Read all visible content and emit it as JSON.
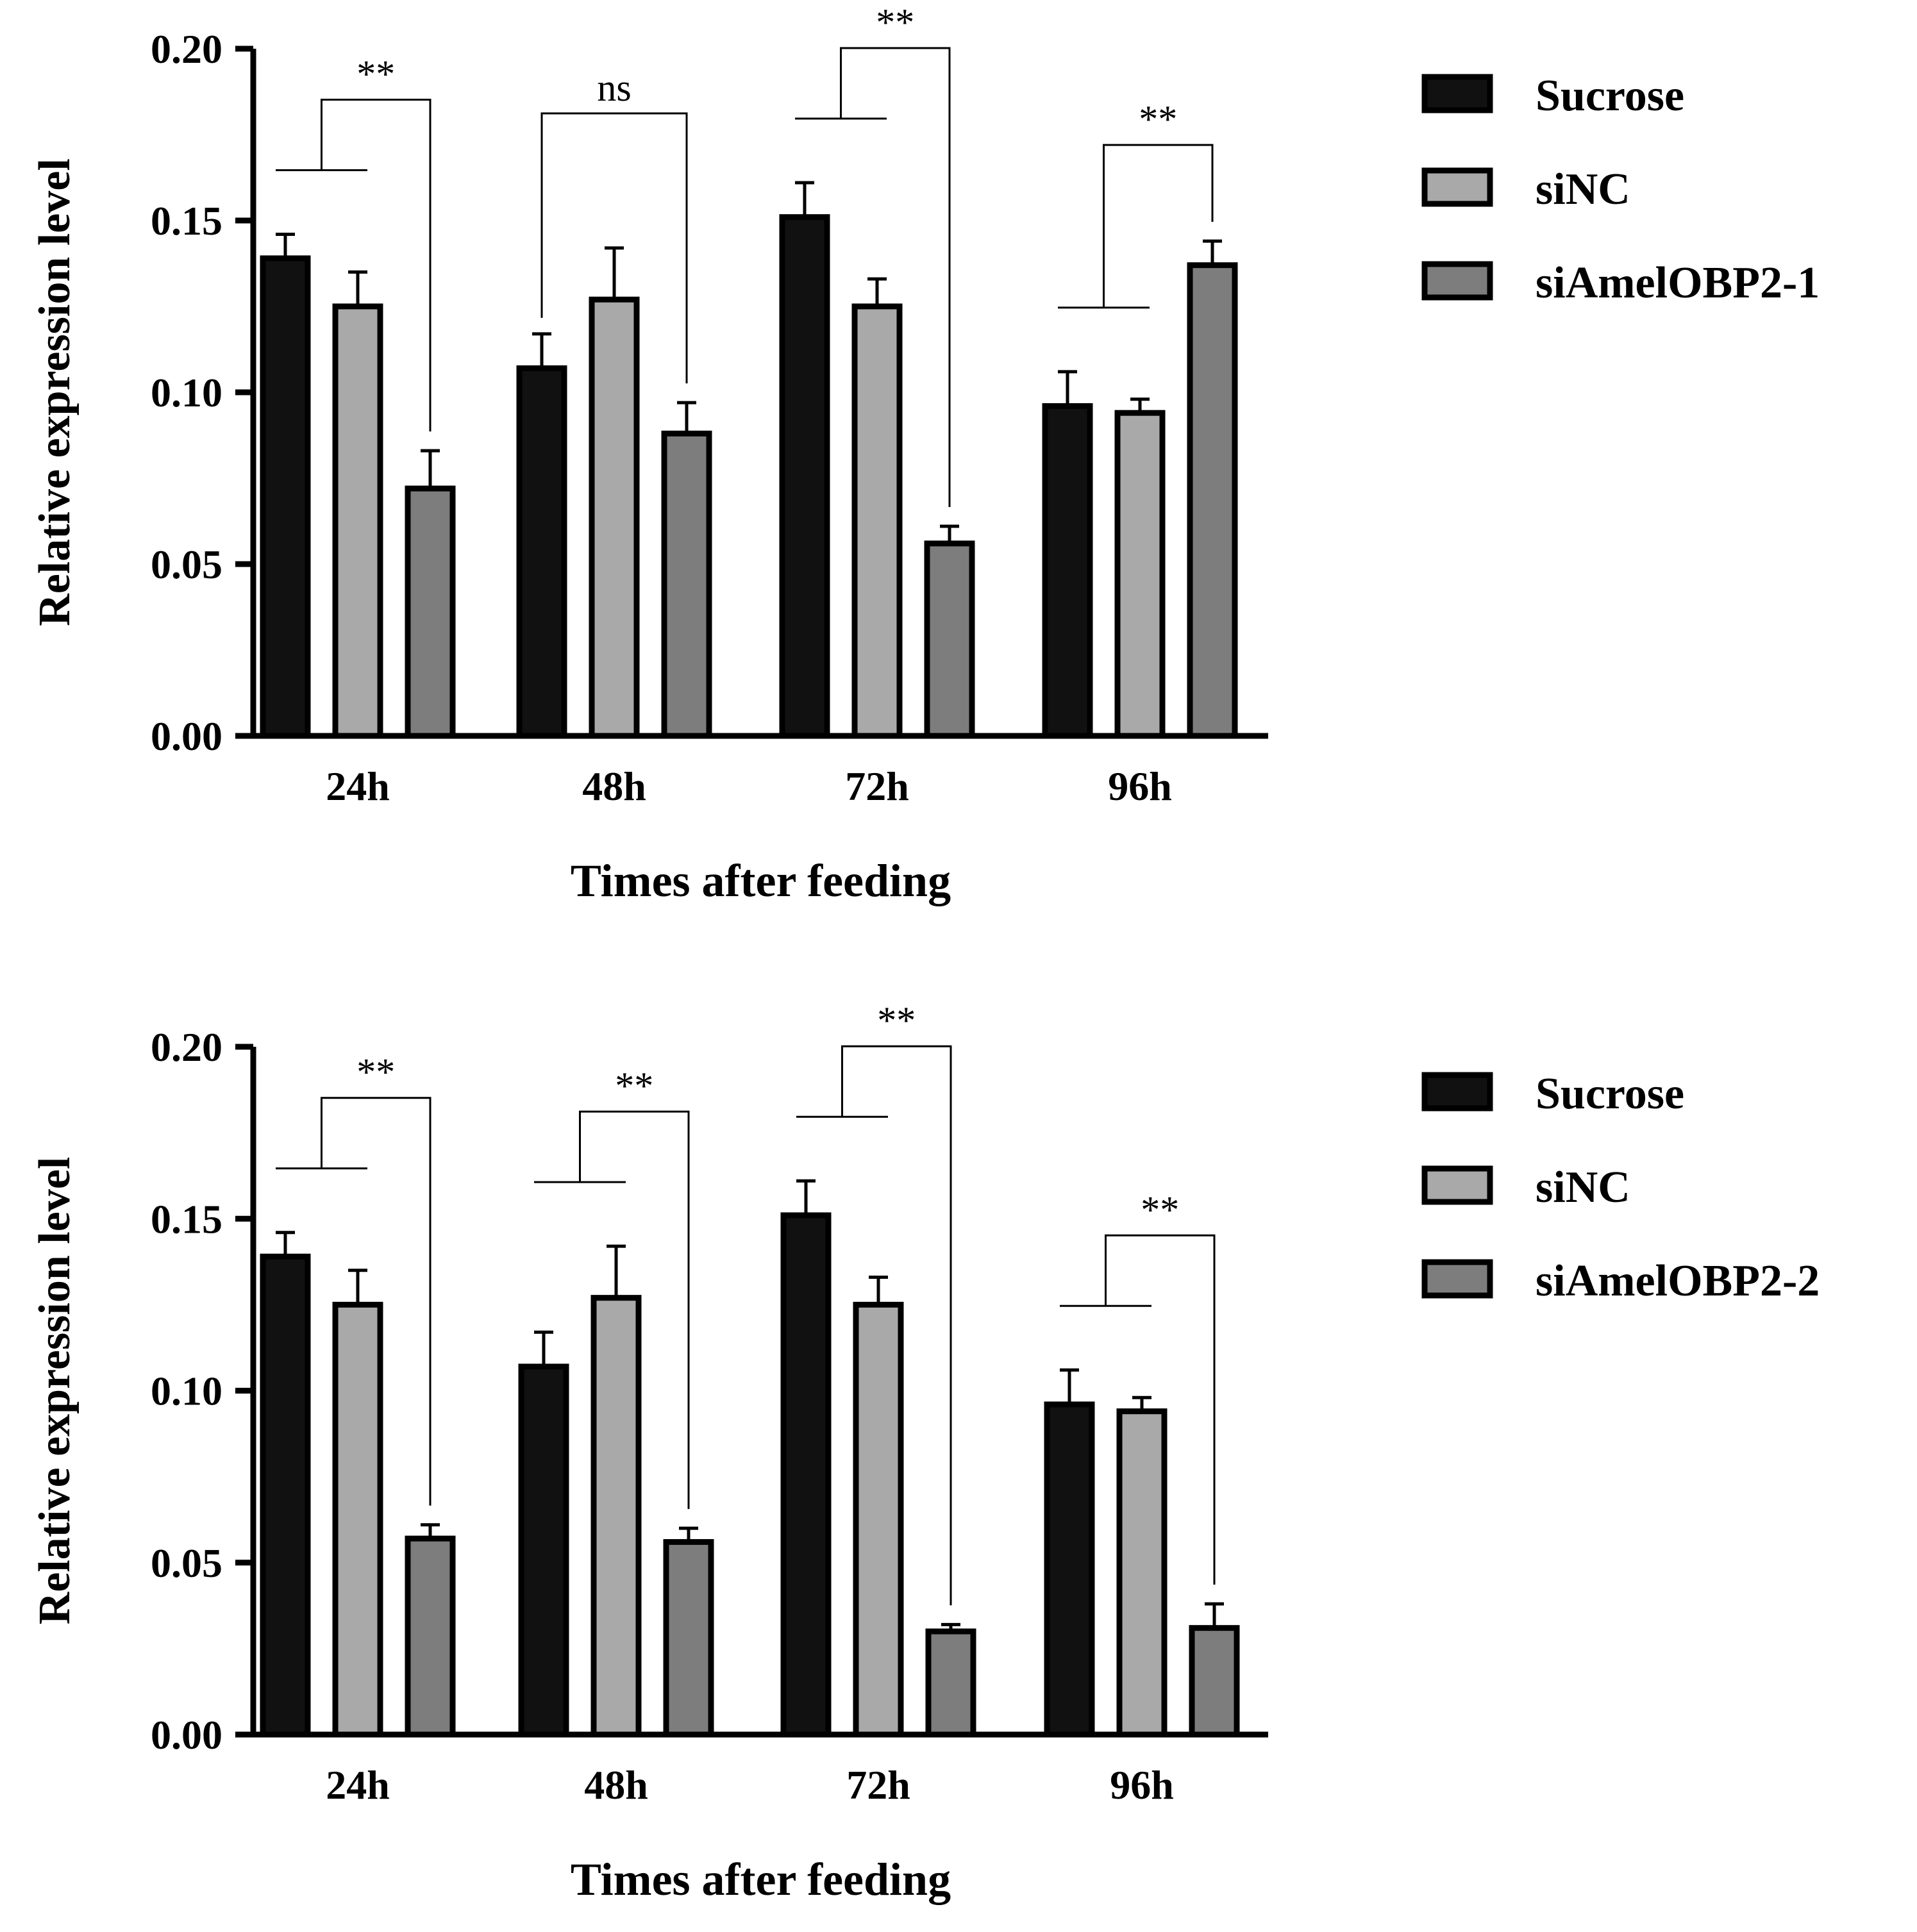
{
  "chart_data": [
    {
      "type": "bar",
      "categories": [
        "24h",
        "48h",
        "72h",
        "96h"
      ],
      "series": [
        {
          "name": "Sucrose",
          "color": "#111111",
          "values": [
            0.139,
            0.107,
            0.151,
            0.096
          ],
          "errors": [
            0.007,
            0.01,
            0.01,
            0.01
          ]
        },
        {
          "name": "siNC",
          "color": "#a9a9a9",
          "values": [
            0.125,
            0.127,
            0.125,
            0.094
          ],
          "errors": [
            0.01,
            0.015,
            0.008,
            0.004
          ]
        },
        {
          "name": "siAmelOBP2-1",
          "color": "#7d7d7d",
          "values": [
            0.072,
            0.088,
            0.056,
            0.137
          ],
          "errors": [
            0.011,
            0.009,
            0.005,
            0.007
          ]
        }
      ],
      "significance": [
        "**",
        "ns",
        "**",
        "**"
      ],
      "title": "",
      "xlabel": "Times after feeding",
      "ylabel": "Relative expression level",
      "ylim": [
        0,
        0.2
      ],
      "yticks": [
        "0.00",
        "0.05",
        "0.10",
        "0.15",
        "0.20"
      ]
    },
    {
      "type": "bar",
      "categories": [
        "24h",
        "48h",
        "72h",
        "96h"
      ],
      "series": [
        {
          "name": "Sucrose",
          "color": "#111111",
          "values": [
            0.139,
            0.107,
            0.151,
            0.096
          ],
          "errors": [
            0.007,
            0.01,
            0.01,
            0.01
          ]
        },
        {
          "name": "siNC",
          "color": "#a9a9a9",
          "values": [
            0.125,
            0.127,
            0.125,
            0.094
          ],
          "errors": [
            0.01,
            0.015,
            0.008,
            0.004
          ]
        },
        {
          "name": "siAmelOBP2-2",
          "color": "#7d7d7d",
          "values": [
            0.057,
            0.056,
            0.03,
            0.031
          ],
          "errors": [
            0.004,
            0.004,
            0.002,
            0.007
          ]
        }
      ],
      "significance": [
        "**",
        "**",
        "**",
        "**"
      ],
      "title": "",
      "xlabel": "Times after feeding",
      "ylabel": "Relative expression level",
      "ylim": [
        0,
        0.2
      ],
      "yticks": [
        "0.00",
        "0.05",
        "0.10",
        "0.15",
        "0.20"
      ]
    }
  ]
}
